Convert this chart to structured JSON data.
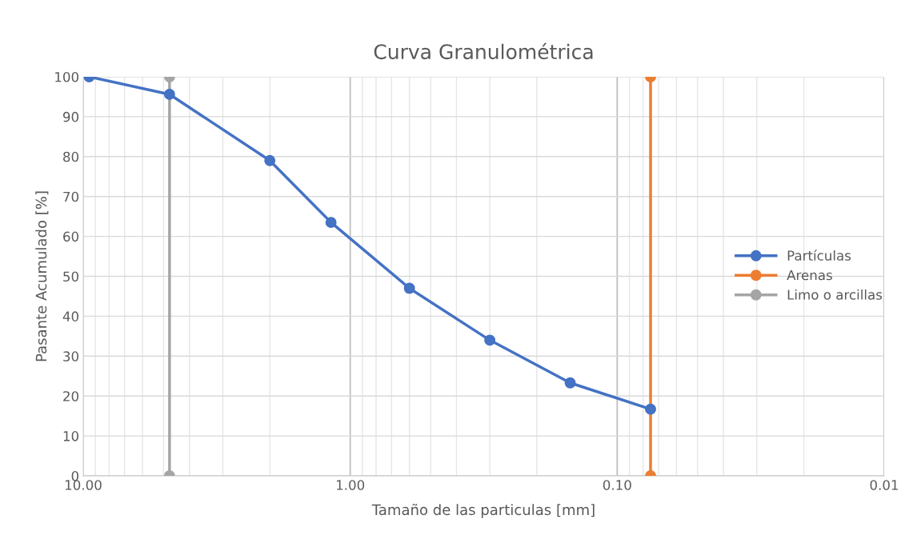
{
  "chart_data": {
    "type": "line",
    "title": "Curva Granulométrica",
    "xlabel": "Tamaño de las particulas [mm]",
    "ylabel": "Pasante Acumulado [%]",
    "log": "x",
    "xlim": [
      10,
      0.01
    ],
    "xticks": [
      {
        "value": 10,
        "label": "10.00"
      },
      {
        "value": 1,
        "label": "1.00"
      },
      {
        "value": 0.1,
        "label": "0.10"
      },
      {
        "value": 0.01,
        "label": "0.01"
      }
    ],
    "ylim": [
      0,
      100
    ],
    "yticks": [
      0,
      10,
      20,
      30,
      40,
      50,
      60,
      70,
      80,
      90,
      100
    ],
    "grid": true,
    "legend": "right",
    "marker": "circle",
    "line_style": "solid",
    "series": [
      {
        "name": "Partículas",
        "color": "#4472c4",
        "x": [
          9.5,
          4.75,
          2.0,
          1.18,
          0.6,
          0.3,
          0.15,
          0.075
        ],
        "values": [
          100,
          95.6,
          79,
          63.5,
          47,
          34,
          23.3,
          16.7
        ]
      },
      {
        "name": "Arenas",
        "color": "#ed7d31",
        "x": [
          0.075,
          0.075
        ],
        "values": [
          0,
          100
        ]
      },
      {
        "name": "Limo o arcillas",
        "color": "#a5a5a5",
        "x": [
          4.75,
          4.75
        ],
        "values": [
          0,
          100
        ]
      }
    ]
  }
}
